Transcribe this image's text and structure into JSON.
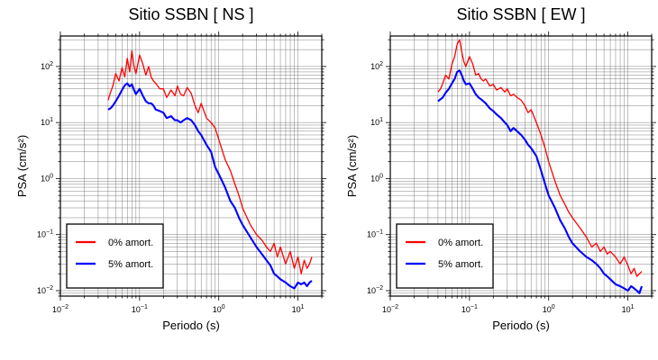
{
  "chart_data": [
    {
      "type": "line",
      "title": "Sitio SSBN [ NS ]",
      "xlabel": "Periodo (s)",
      "ylabel": "PSA (cm/s²)",
      "xscale": "log",
      "yscale": "log",
      "xlim": [
        0.01,
        20
      ],
      "ylim": [
        0.008,
        350
      ],
      "grid": true,
      "legend_position": "bottom-left",
      "x_ticks": [
        {
          "base": "10",
          "exp": "−2"
        },
        {
          "base": "10",
          "exp": "−1"
        },
        {
          "base": "10",
          "exp": "0"
        },
        {
          "base": "10",
          "exp": "1"
        }
      ],
      "y_ticks": [
        {
          "base": "10",
          "exp": "−2"
        },
        {
          "base": "10",
          "exp": "−1"
        },
        {
          "base": "10",
          "exp": "0"
        },
        {
          "base": "10",
          "exp": "1"
        },
        {
          "base": "10",
          "exp": "2"
        }
      ],
      "series": [
        {
          "name": "0% amort.",
          "color": "#ff0000",
          "x": [
            0.04,
            0.043,
            0.046,
            0.05,
            0.055,
            0.06,
            0.065,
            0.07,
            0.075,
            0.08,
            0.085,
            0.09,
            0.1,
            0.11,
            0.12,
            0.13,
            0.14,
            0.15,
            0.16,
            0.18,
            0.2,
            0.22,
            0.25,
            0.28,
            0.3,
            0.33,
            0.36,
            0.4,
            0.45,
            0.5,
            0.55,
            0.6,
            0.7,
            0.8,
            0.9,
            1.0,
            1.2,
            1.4,
            1.6,
            1.8,
            2.0,
            2.5,
            3.0,
            3.5,
            4.0,
            4.5,
            5.0,
            5.5,
            6.0,
            7.0,
            8.0,
            9.0,
            10.0,
            11.0,
            12.0,
            13.0,
            14.0,
            15.0
          ],
          "y": [
            25,
            35,
            45,
            75,
            55,
            95,
            65,
            140,
            80,
            190,
            100,
            75,
            160,
            110,
            70,
            100,
            65,
            55,
            50,
            40,
            40,
            28,
            38,
            30,
            45,
            32,
            30,
            42,
            33,
            20,
            15,
            22,
            12,
            10,
            8,
            5,
            2.2,
            1.4,
            0.8,
            0.5,
            0.3,
            0.15,
            0.1,
            0.08,
            0.06,
            0.05,
            0.07,
            0.04,
            0.06,
            0.03,
            0.05,
            0.025,
            0.04,
            0.02,
            0.035,
            0.025,
            0.03,
            0.04
          ]
        },
        {
          "name": "5% amort.",
          "color": "#0000ff",
          "x": [
            0.04,
            0.043,
            0.046,
            0.05,
            0.055,
            0.06,
            0.065,
            0.07,
            0.075,
            0.08,
            0.085,
            0.09,
            0.1,
            0.11,
            0.12,
            0.13,
            0.14,
            0.15,
            0.16,
            0.18,
            0.2,
            0.22,
            0.25,
            0.28,
            0.3,
            0.33,
            0.36,
            0.4,
            0.45,
            0.5,
            0.55,
            0.6,
            0.7,
            0.8,
            0.9,
            1.0,
            1.2,
            1.4,
            1.6,
            1.8,
            2.0,
            2.5,
            3.0,
            3.5,
            4.0,
            4.5,
            5.0,
            5.5,
            6.0,
            7.0,
            8.0,
            9.0,
            10.0,
            11.0,
            12.0,
            13.0,
            14.0,
            15.0
          ],
          "y": [
            17,
            18,
            20,
            24,
            30,
            38,
            46,
            50,
            44,
            48,
            38,
            32,
            40,
            30,
            24,
            22,
            22,
            20,
            17,
            16,
            15,
            12,
            13,
            11,
            11,
            10,
            11,
            12,
            11,
            9,
            7,
            6,
            4,
            3,
            1.6,
            1.2,
            0.7,
            0.4,
            0.3,
            0.2,
            0.15,
            0.09,
            0.06,
            0.045,
            0.035,
            0.028,
            0.02,
            0.018,
            0.016,
            0.014,
            0.012,
            0.011,
            0.014,
            0.013,
            0.014,
            0.012,
            0.014,
            0.015
          ]
        }
      ]
    },
    {
      "type": "line",
      "title": "Sitio SSBN [ EW ]",
      "xlabel": "Periodo (s)",
      "ylabel": "PSA (cm/s²)",
      "xscale": "log",
      "yscale": "log",
      "xlim": [
        0.01,
        20
      ],
      "ylim": [
        0.008,
        350
      ],
      "grid": true,
      "legend_position": "bottom-left",
      "x_ticks": [
        {
          "base": "10",
          "exp": "−2"
        },
        {
          "base": "10",
          "exp": "−1"
        },
        {
          "base": "10",
          "exp": "0"
        },
        {
          "base": "10",
          "exp": "1"
        }
      ],
      "y_ticks": [
        {
          "base": "10",
          "exp": "−2"
        },
        {
          "base": "10",
          "exp": "−1"
        },
        {
          "base": "10",
          "exp": "0"
        },
        {
          "base": "10",
          "exp": "1"
        },
        {
          "base": "10",
          "exp": "2"
        }
      ],
      "series": [
        {
          "name": "0% amort.",
          "color": "#ff0000",
          "x": [
            0.04,
            0.043,
            0.046,
            0.05,
            0.055,
            0.06,
            0.065,
            0.07,
            0.075,
            0.08,
            0.085,
            0.09,
            0.1,
            0.11,
            0.12,
            0.13,
            0.14,
            0.15,
            0.16,
            0.18,
            0.2,
            0.22,
            0.25,
            0.28,
            0.3,
            0.33,
            0.36,
            0.4,
            0.45,
            0.5,
            0.55,
            0.6,
            0.7,
            0.8,
            0.9,
            1.0,
            1.2,
            1.4,
            1.6,
            1.8,
            2.0,
            2.5,
            3.0,
            3.5,
            4.0,
            4.5,
            5.0,
            5.5,
            6.0,
            7.0,
            8.0,
            9.0,
            10.0,
            11.0,
            12.0,
            13.0,
            14.0,
            15.0
          ],
          "y": [
            35,
            40,
            50,
            70,
            60,
            110,
            150,
            250,
            300,
            180,
            120,
            100,
            150,
            110,
            70,
            75,
            60,
            55,
            60,
            45,
            48,
            38,
            42,
            35,
            40,
            30,
            32,
            28,
            25,
            20,
            15,
            17,
            10,
            6,
            3.5,
            2.0,
            0.9,
            0.5,
            0.35,
            0.25,
            0.2,
            0.13,
            0.09,
            0.06,
            0.07,
            0.05,
            0.06,
            0.045,
            0.05,
            0.04,
            0.03,
            0.04,
            0.028,
            0.02,
            0.025,
            0.018,
            0.02,
            0.022
          ]
        },
        {
          "name": "5% amort.",
          "color": "#0000ff",
          "x": [
            0.04,
            0.043,
            0.046,
            0.05,
            0.055,
            0.06,
            0.065,
            0.07,
            0.075,
            0.08,
            0.085,
            0.09,
            0.1,
            0.11,
            0.12,
            0.13,
            0.14,
            0.15,
            0.16,
            0.18,
            0.2,
            0.22,
            0.25,
            0.28,
            0.3,
            0.33,
            0.36,
            0.4,
            0.45,
            0.5,
            0.55,
            0.6,
            0.7,
            0.8,
            0.9,
            1.0,
            1.2,
            1.4,
            1.6,
            1.8,
            2.0,
            2.5,
            3.0,
            3.5,
            4.0,
            4.5,
            5.0,
            5.5,
            6.0,
            7.0,
            8.0,
            9.0,
            10.0,
            11.0,
            12.0,
            13.0,
            14.0,
            15.0
          ],
          "y": [
            24,
            26,
            28,
            34,
            40,
            50,
            60,
            80,
            85,
            70,
            55,
            48,
            50,
            40,
            32,
            28,
            26,
            24,
            22,
            18,
            16,
            14,
            12,
            10,
            9,
            7,
            8,
            7,
            6,
            5,
            4,
            3.5,
            2.5,
            1.4,
            0.8,
            0.5,
            0.3,
            0.18,
            0.13,
            0.09,
            0.07,
            0.05,
            0.04,
            0.035,
            0.03,
            0.025,
            0.02,
            0.018,
            0.016,
            0.013,
            0.012,
            0.011,
            0.01,
            0.012,
            0.011,
            0.01,
            0.009,
            0.012
          ]
        }
      ]
    }
  ]
}
